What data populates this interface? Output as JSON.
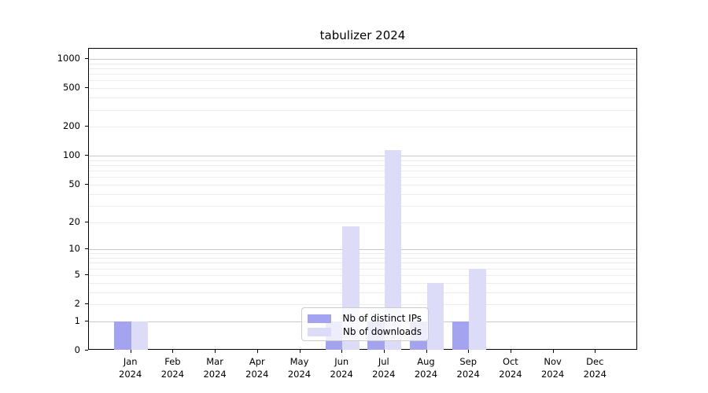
{
  "chart_data": {
    "type": "bar",
    "title": "tabulizer 2024",
    "categories": [
      "Jan",
      "Feb",
      "Mar",
      "Apr",
      "May",
      "Jun",
      "Jul",
      "Aug",
      "Sep",
      "Oct",
      "Nov",
      "Dec"
    ],
    "x_year_label": "2024",
    "series": [
      {
        "name": "Nb of distinct IPs",
        "color": "#a3a3f0",
        "values": [
          1,
          0,
          0,
          0,
          0,
          1,
          1,
          1,
          1,
          0,
          0,
          0
        ]
      },
      {
        "name": "Nb of downloads",
        "color": "#dcdcf8",
        "values": [
          1,
          0,
          0,
          0,
          0,
          18,
          115,
          4,
          6,
          0,
          0,
          0
        ]
      }
    ],
    "y_axis": {
      "scale": "log1p",
      "ticks": [
        0,
        1,
        2,
        5,
        10,
        20,
        50,
        100,
        200,
        500,
        1000
      ],
      "major_gridlines": [
        1,
        10,
        100,
        1000
      ],
      "max": 1275
    },
    "xlabel": "",
    "ylabel": "",
    "grid": "horizontal",
    "legend": {
      "position": "lower center"
    },
    "colors": {
      "spine": "#000000",
      "grid_major": "#c8c8c8",
      "grid_minor": "#ebebeb",
      "background": "#ffffff"
    }
  }
}
